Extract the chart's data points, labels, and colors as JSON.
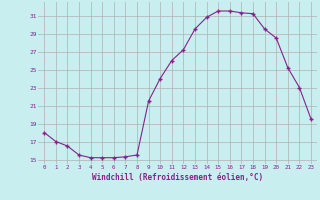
{
  "x": [
    0,
    1,
    2,
    3,
    4,
    5,
    6,
    7,
    8,
    9,
    10,
    11,
    12,
    13,
    14,
    15,
    16,
    17,
    18,
    19,
    20,
    21,
    22,
    23
  ],
  "y": [
    18.0,
    17.0,
    16.5,
    15.5,
    15.2,
    15.2,
    15.2,
    15.3,
    15.5,
    21.5,
    24.0,
    26.0,
    27.2,
    29.5,
    30.8,
    31.5,
    31.5,
    31.3,
    31.2,
    29.5,
    28.5,
    25.2,
    23.0,
    19.5
  ],
  "line_color": "#882288",
  "marker": "+",
  "marker_size": 3,
  "bg_color": "#c8eef0",
  "grid_color": "#b0b0b0",
  "xlabel": "Windchill (Refroidissement éolien,°C)",
  "xlabel_color": "#882288",
  "tick_color": "#882288",
  "ylim": [
    14.5,
    32.5
  ],
  "xlim": [
    -0.5,
    23.5
  ],
  "yticks": [
    15,
    17,
    19,
    21,
    23,
    25,
    27,
    29,
    31
  ],
  "xticks": [
    0,
    1,
    2,
    3,
    4,
    5,
    6,
    7,
    8,
    9,
    10,
    11,
    12,
    13,
    14,
    15,
    16,
    17,
    18,
    19,
    20,
    21,
    22,
    23
  ]
}
